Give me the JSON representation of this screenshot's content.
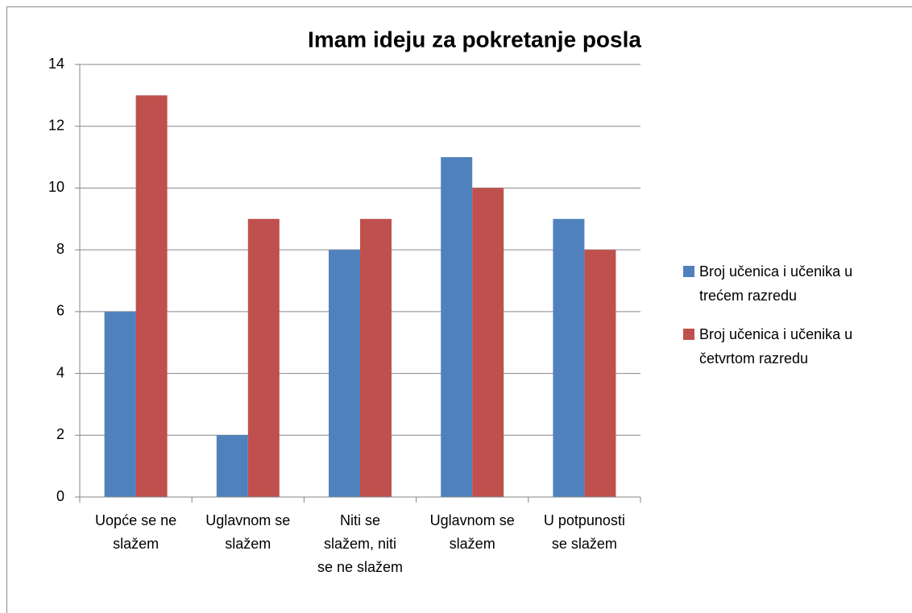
{
  "chart_data": {
    "type": "bar",
    "title": "Imam ideju za pokretanje posla",
    "categories": [
      "Uopće se ne slažem",
      "Uglavnom se slažem",
      "Niti se slažem, niti se ne slažem",
      "Uglavnom se slažem",
      "U potpunosti se slažem"
    ],
    "series": [
      {
        "name": "Broj učenica i učenika u trećem razredu",
        "color": "#4f81bd",
        "values": [
          6,
          2,
          8,
          11,
          9
        ]
      },
      {
        "name": "Broj učenica i učenika u četvrtom razredu",
        "color": "#c0504d",
        "values": [
          13,
          9,
          9,
          10,
          8
        ]
      }
    ],
    "ylim": [
      0,
      14
    ],
    "yticks": [
      0,
      2,
      4,
      6,
      8,
      10,
      12,
      14
    ],
    "grid": true,
    "legend": "right"
  }
}
